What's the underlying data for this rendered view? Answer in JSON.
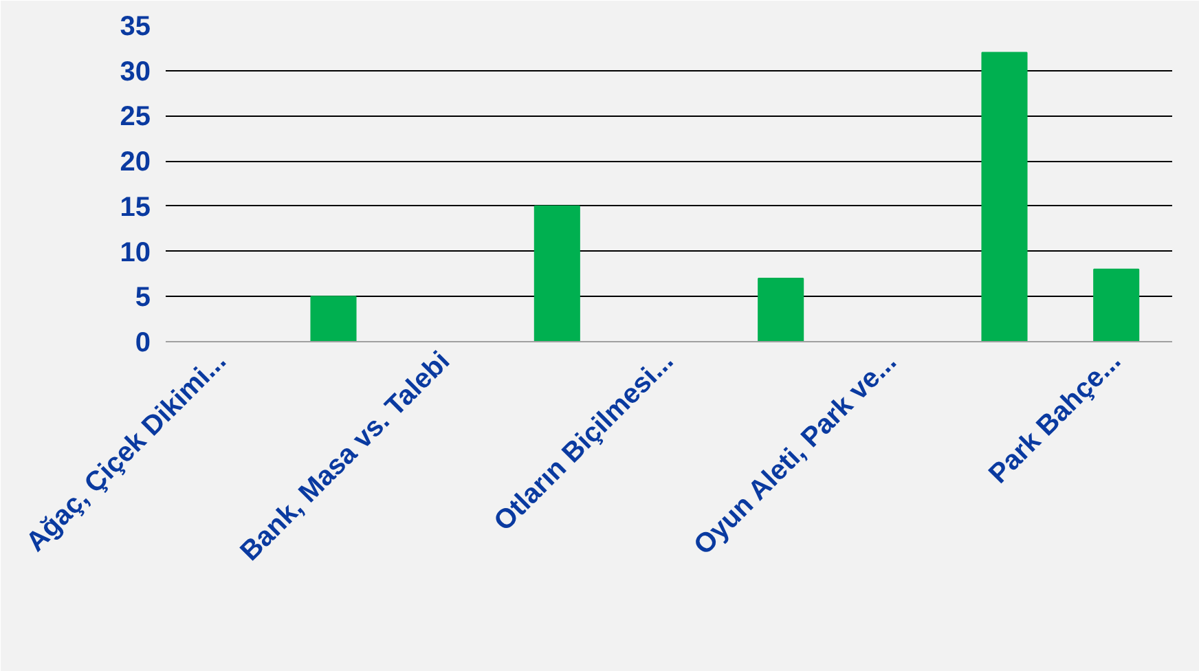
{
  "chart_data": {
    "type": "bar",
    "categories": [
      "Ağaç, Çiçek Dikimi...",
      null,
      "Bank, Masa vs. Talebi",
      null,
      "Otların Biçilmesi...",
      null,
      "Oyun Aleti, Park ve...",
      null,
      "Park Bahçe..."
    ],
    "values": [
      null,
      5,
      null,
      15,
      null,
      7,
      null,
      32,
      8
    ],
    "color": "#00b050",
    "ylim": [
      0,
      35
    ],
    "yticks": [
      0,
      5,
      10,
      15,
      20,
      25,
      30,
      35
    ],
    "grid": "y"
  }
}
